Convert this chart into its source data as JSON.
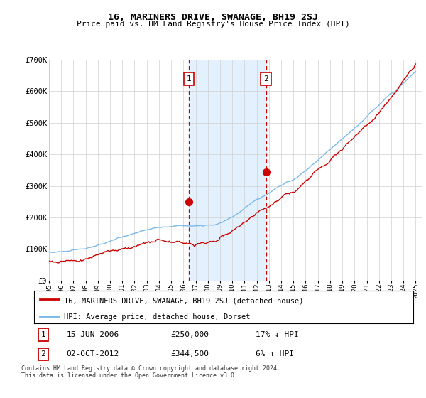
{
  "title": "16, MARINERS DRIVE, SWANAGE, BH19 2SJ",
  "subtitle": "Price paid vs. HM Land Registry's House Price Index (HPI)",
  "ylabel_ticks": [
    "£0",
    "£100K",
    "£200K",
    "£300K",
    "£400K",
    "£500K",
    "£600K",
    "£700K"
  ],
  "ylim": [
    0,
    700000
  ],
  "xlim_start": 1995.0,
  "xlim_end": 2025.5,
  "hpi_color": "#7ab8e8",
  "price_color": "#cc0000",
  "sale1_x": 2006.45,
  "sale1_y": 250000,
  "sale2_x": 2012.75,
  "sale2_y": 344500,
  "vline_color": "#cc0000",
  "shade_color": "#ddeeff",
  "legend_label1": "16, MARINERS DRIVE, SWANAGE, BH19 2SJ (detached house)",
  "legend_label2": "HPI: Average price, detached house, Dorset",
  "table_row1": [
    "1",
    "15-JUN-2006",
    "£250,000",
    "17% ↓ HPI"
  ],
  "table_row2": [
    "2",
    "02-OCT-2012",
    "£344,500",
    "6% ↑ HPI"
  ],
  "footnote": "Contains HM Land Registry data © Crown copyright and database right 2024.\nThis data is licensed under the Open Government Licence v3.0."
}
